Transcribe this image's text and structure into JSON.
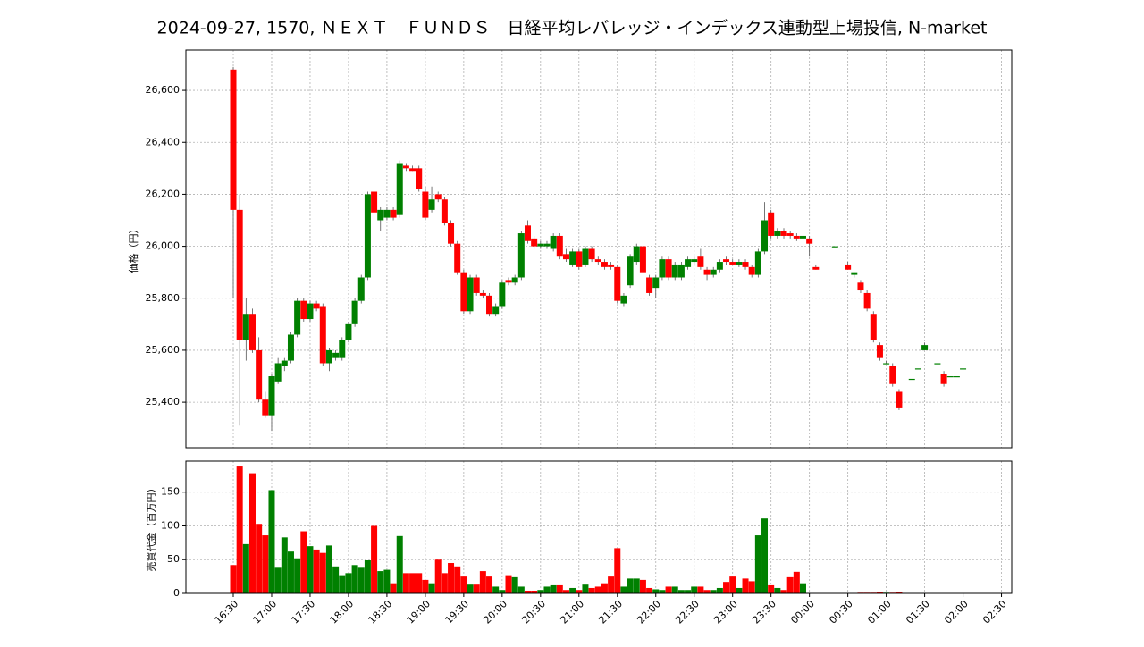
{
  "chart_data": [
    {
      "type": "candlestick",
      "title": "2024-09-27, 1570, ＮＥＸＴ　ＦＵＮＤＳ　日経平均レバレッジ・インデックス連動型上場投信, N-market",
      "ylabel": "価格（円）",
      "up_color": "#008000",
      "down_color": "#ff0000",
      "grid": true,
      "xlim": [
        "15:53",
        "02:38"
      ],
      "ylim": [
        25225,
        26755
      ],
      "yticks": [
        {
          "value": 25400,
          "label": "25,400"
        },
        {
          "value": 25600,
          "label": "25,600"
        },
        {
          "value": 25800,
          "label": "25,800"
        },
        {
          "value": 26000,
          "label": "26,000"
        },
        {
          "value": 26200,
          "label": "26,200"
        },
        {
          "value": 26400,
          "label": "26,400"
        },
        {
          "value": 26600,
          "label": "26,600"
        }
      ],
      "x": [
        "16:30",
        "16:35",
        "16:40",
        "16:45",
        "16:50",
        "16:55",
        "17:00",
        "17:05",
        "17:10",
        "17:15",
        "17:20",
        "17:25",
        "17:30",
        "17:35",
        "17:40",
        "17:45",
        "17:50",
        "17:55",
        "18:00",
        "18:05",
        "18:10",
        "18:15",
        "18:20",
        "18:25",
        "18:30",
        "18:35",
        "18:40",
        "18:45",
        "18:50",
        "18:55",
        "19:00",
        "19:05",
        "19:10",
        "19:15",
        "19:20",
        "19:25",
        "19:30",
        "19:35",
        "19:40",
        "19:45",
        "19:50",
        "19:55",
        "20:00",
        "20:05",
        "20:10",
        "20:15",
        "20:20",
        "20:25",
        "20:30",
        "20:35",
        "20:40",
        "20:45",
        "20:50",
        "20:55",
        "21:00",
        "21:05",
        "21:10",
        "21:15",
        "21:20",
        "21:25",
        "21:30",
        "21:35",
        "21:40",
        "21:45",
        "21:50",
        "21:55",
        "22:00",
        "22:05",
        "22:10",
        "22:15",
        "22:20",
        "22:25",
        "22:30",
        "22:35",
        "22:40",
        "22:45",
        "22:50",
        "22:55",
        "23:00",
        "23:05",
        "23:10",
        "23:15",
        "23:20",
        "23:25",
        "23:30",
        "23:35",
        "23:40",
        "23:45",
        "23:50",
        "23:55",
        "00:00",
        "00:05",
        "00:20",
        "00:30",
        "00:35",
        "00:40",
        "00:45",
        "00:50",
        "00:55",
        "01:00",
        "01:05",
        "01:10",
        "01:20",
        "01:25",
        "01:30",
        "01:40",
        "01:45",
        "01:50",
        "01:55",
        "02:00"
      ],
      "open": [
        26680,
        26140,
        25640,
        25740,
        25600,
        25410,
        25350,
        25480,
        25540,
        25560,
        25660,
        25790,
        25720,
        25780,
        25770,
        25550,
        25570,
        25570,
        25640,
        25700,
        25790,
        25880,
        26210,
        26100,
        26110,
        26140,
        26120,
        26310,
        26300,
        26300,
        26210,
        26140,
        26200,
        26180,
        26090,
        26010,
        25900,
        25750,
        25880,
        25820,
        25810,
        25740,
        25770,
        25870,
        25860,
        25880,
        26080,
        26030,
        26000,
        26000,
        25990,
        26040,
        25970,
        25930,
        25980,
        25930,
        25990,
        25950,
        25940,
        25930,
        25920,
        25780,
        25850,
        25940,
        26000,
        25880,
        25840,
        25880,
        25950,
        25880,
        25880,
        25920,
        25940,
        25960,
        25910,
        25890,
        25910,
        25950,
        25940,
        25930,
        25940,
        25920,
        25890,
        25980,
        26130,
        26040,
        26060,
        26050,
        26040,
        26030,
        26030,
        25920,
        26000,
        25930,
        25890,
        25860,
        25820,
        25740,
        25620,
        25550,
        25540,
        25440,
        25490,
        25530,
        25600,
        25550,
        25510,
        25500,
        25500,
        25530
      ],
      "high": [
        26690,
        26200,
        25800,
        25760,
        25650,
        25440,
        25510,
        25570,
        25570,
        25670,
        25800,
        25800,
        25790,
        25790,
        25780,
        25610,
        25600,
        25650,
        25710,
        25800,
        25890,
        26210,
        26220,
        26150,
        26150,
        26150,
        26330,
        26320,
        26310,
        26310,
        26230,
        26230,
        26210,
        26190,
        26100,
        26020,
        25910,
        25890,
        25890,
        25830,
        25820,
        25780,
        25870,
        25880,
        25890,
        26060,
        26100,
        26040,
        26020,
        26020,
        26050,
        26050,
        25990,
        25990,
        25990,
        26000,
        26000,
        25960,
        25950,
        25940,
        25930,
        25820,
        25970,
        26010,
        26010,
        25890,
        25890,
        25960,
        25960,
        25940,
        25940,
        25960,
        25960,
        25990,
        25920,
        25920,
        25950,
        25960,
        25950,
        25950,
        25950,
        25930,
        25990,
        26170,
        26140,
        26070,
        26070,
        26060,
        26050,
        26050,
        26040,
        25930,
        26000,
        25940,
        25900,
        25870,
        25830,
        25750,
        25630,
        25560,
        25550,
        25450,
        25490,
        25530,
        25630,
        25550,
        25520,
        25500,
        25500,
        25530
      ],
      "low": [
        25800,
        25310,
        25560,
        25590,
        25400,
        25340,
        25290,
        25470,
        25520,
        25550,
        25650,
        25710,
        25710,
        25750,
        25540,
        25520,
        25560,
        25560,
        25630,
        25690,
        25780,
        25870,
        26120,
        26060,
        26100,
        26100,
        26110,
        26290,
        26290,
        26210,
        26100,
        26130,
        26170,
        26080,
        26000,
        25890,
        25740,
        25740,
        25810,
        25800,
        25730,
        25730,
        25760,
        25850,
        25850,
        25870,
        26010,
        25990,
        25990,
        25990,
        25980,
        25950,
        25940,
        25920,
        25910,
        25920,
        25940,
        25930,
        25910,
        25910,
        25780,
        25770,
        25840,
        25930,
        25890,
        25810,
        25800,
        25870,
        25870,
        25870,
        25870,
        25910,
        25930,
        25910,
        25870,
        25880,
        25900,
        25930,
        25930,
        25920,
        25910,
        25880,
        25880,
        25970,
        26030,
        26030,
        26030,
        26030,
        26020,
        26020,
        25960,
        25910,
        26000,
        25910,
        25880,
        25820,
        25750,
        25630,
        25560,
        25550,
        25460,
        25370,
        25490,
        25530,
        25600,
        25550,
        25460,
        25500,
        25500,
        25530
      ],
      "close": [
        26140,
        25640,
        25740,
        25600,
        25410,
        25350,
        25500,
        25550,
        25560,
        25660,
        25790,
        25720,
        25780,
        25760,
        25550,
        25600,
        25590,
        25640,
        25700,
        25790,
        25880,
        26200,
        26130,
        26140,
        26140,
        26110,
        26320,
        26300,
        26290,
        26220,
        26110,
        26180,
        26180,
        26090,
        26010,
        25900,
        25750,
        25880,
        25820,
        25810,
        25740,
        25770,
        25860,
        25860,
        25880,
        26050,
        26020,
        26000,
        26010,
        26010,
        26040,
        25960,
        25950,
        25980,
        25920,
        25990,
        25950,
        25940,
        25920,
        25920,
        25790,
        25810,
        25960,
        26000,
        25900,
        25820,
        25880,
        25950,
        25880,
        25930,
        25930,
        25950,
        25950,
        25920,
        25890,
        25910,
        25940,
        25940,
        25930,
        25940,
        25920,
        25890,
        25980,
        26100,
        26040,
        26060,
        26040,
        26040,
        26030,
        26040,
        26010,
        25910,
        26000,
        25910,
        25900,
        25830,
        25760,
        25640,
        25570,
        25550,
        25470,
        25380,
        25490,
        25530,
        25620,
        25550,
        25470,
        25500,
        25500,
        25530
      ]
    },
    {
      "type": "bar",
      "ylabel": "売買代金（百万円）",
      "grid": true,
      "ylim": [
        0,
        196
      ],
      "yticks": [
        0,
        50,
        100,
        150
      ],
      "xticks": [
        "16:30",
        "17:00",
        "17:30",
        "18:00",
        "18:30",
        "19:00",
        "19:30",
        "20:00",
        "20:30",
        "21:00",
        "21:30",
        "22:00",
        "22:30",
        "23:00",
        "23:30",
        "00:00",
        "00:30",
        "01:00",
        "01:30",
        "02:00",
        "02:30"
      ],
      "values": [
        42,
        188,
        73,
        178,
        103,
        86,
        153,
        38,
        83,
        62,
        52,
        92,
        70,
        65,
        60,
        71,
        40,
        27,
        30,
        42,
        38,
        49,
        100,
        33,
        35,
        15,
        85,
        30,
        30,
        30,
        20,
        15,
        50,
        30,
        45,
        40,
        25,
        13,
        13,
        33,
        25,
        10,
        5,
        27,
        24,
        10,
        4,
        4,
        5,
        10,
        12,
        12,
        5,
        8,
        5,
        13,
        8,
        10,
        15,
        25,
        67,
        10,
        22,
        22,
        20,
        8,
        6,
        5,
        10,
        10,
        5,
        5,
        10,
        10,
        5,
        5,
        8,
        17,
        25,
        8,
        22,
        18,
        86,
        111,
        12,
        8,
        5,
        24,
        32,
        15,
        0,
        0,
        0,
        0,
        0,
        1,
        1,
        1,
        2,
        1,
        1,
        2,
        0,
        0,
        0,
        0,
        0,
        0,
        0,
        0
      ]
    }
  ]
}
